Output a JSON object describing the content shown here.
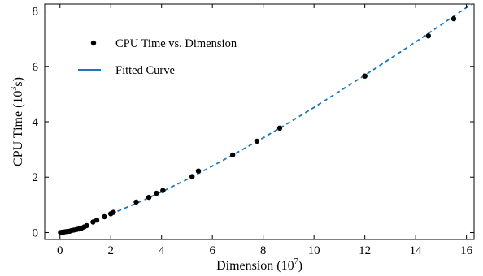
{
  "chart_data": {
    "type": "scatter",
    "xlabel": "Dimension",
    "xlabel_exponent": "7",
    "ylabel_prefix": "CPU Time (10",
    "ylabel_exponent": "3",
    "ylabel_suffix": "s)",
    "xlim": [
      -0.6,
      16.3
    ],
    "ylim": [
      -0.25,
      8.25
    ],
    "x_ticks": [
      0,
      2,
      4,
      6,
      8,
      10,
      12,
      14,
      16
    ],
    "y_ticks": [
      0,
      2,
      4,
      6,
      8
    ],
    "grid": false,
    "legend_position": "top-left",
    "series": [
      {
        "name": "CPU Time vs. Dimension",
        "kind": "scatter",
        "color": "#000000",
        "points": [
          [
            0.02,
            0.0
          ],
          [
            0.08,
            0.01
          ],
          [
            0.15,
            0.02
          ],
          [
            0.22,
            0.03
          ],
          [
            0.3,
            0.04
          ],
          [
            0.38,
            0.05
          ],
          [
            0.45,
            0.07
          ],
          [
            0.55,
            0.09
          ],
          [
            0.65,
            0.11
          ],
          [
            0.75,
            0.13
          ],
          [
            0.85,
            0.16
          ],
          [
            0.95,
            0.2
          ],
          [
            1.05,
            0.25
          ],
          [
            1.3,
            0.38
          ],
          [
            1.45,
            0.45
          ],
          [
            1.75,
            0.57
          ],
          [
            2.0,
            0.68
          ],
          [
            2.1,
            0.73
          ],
          [
            3.0,
            1.1
          ],
          [
            3.5,
            1.27
          ],
          [
            3.8,
            1.42
          ],
          [
            4.05,
            1.52
          ],
          [
            5.2,
            2.02
          ],
          [
            5.45,
            2.22
          ],
          [
            6.8,
            2.8
          ],
          [
            7.75,
            3.3
          ],
          [
            8.65,
            3.77
          ],
          [
            12.0,
            5.65
          ],
          [
            14.5,
            7.1
          ],
          [
            15.5,
            7.72
          ]
        ]
      },
      {
        "name": "Fitted Curve",
        "kind": "line",
        "style": "dashed",
        "legend_style": "solid",
        "color": "#1f77b4",
        "points": [
          [
            2.0,
            0.67
          ],
          [
            3.0,
            1.05
          ],
          [
            4.0,
            1.47
          ],
          [
            5.0,
            1.92
          ],
          [
            6.0,
            2.4
          ],
          [
            7.0,
            2.9
          ],
          [
            8.0,
            3.42
          ],
          [
            9.0,
            3.96
          ],
          [
            10.0,
            4.52
          ],
          [
            11.0,
            5.1
          ],
          [
            12.0,
            5.68
          ],
          [
            13.0,
            6.28
          ],
          [
            14.0,
            6.88
          ],
          [
            15.0,
            7.5
          ],
          [
            16.2,
            8.25
          ]
        ]
      }
    ]
  }
}
